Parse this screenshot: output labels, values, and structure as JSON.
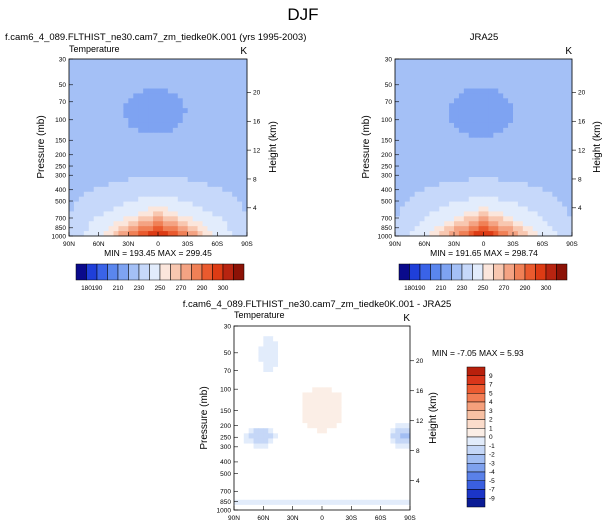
{
  "page_title": "DJF",
  "chart_data": [
    {
      "type": "heatmap",
      "id": "model",
      "title": "f.cam6_4_089.FLTHIST_ne30.cam7_zm_tiedke0K.001 (yrs 1995-2003)",
      "left_string": "Temperature",
      "right_string": "K",
      "ylabel": "Pressure (mb)",
      "right_ylabel": "Height (km)",
      "x_ticks": [
        "90N",
        "60N",
        "30N",
        "0",
        "30S",
        "60S",
        "90S"
      ],
      "y_ticks": [
        "30",
        "50",
        "70",
        "100",
        "150",
        "200",
        "250",
        "300",
        "400",
        "500",
        "700",
        "850",
        "1000"
      ],
      "height_ticks": [
        "20",
        "16",
        "12",
        "8",
        "4"
      ],
      "min_max": "MIN = 193.45   MAX = 299.45",
      "colorbar_labels": [
        "180",
        "190",
        "210",
        "230",
        "250",
        "270",
        "290",
        "300"
      ],
      "colorbar_colors": [
        "#0a0a8c",
        "#1f3fd9",
        "#3a63e8",
        "#5a86ee",
        "#7ea3f2",
        "#a4c0f6",
        "#c6d8fa",
        "#e2ecfc",
        "#fbe6dc",
        "#f8c7b0",
        "#f4a383",
        "#f08056",
        "#ea5a2e",
        "#dd3b14",
        "#b82410",
        "#8c1206"
      ]
    },
    {
      "type": "heatmap",
      "id": "obs",
      "title": "JRA25",
      "right_string": "K",
      "ylabel": "Pressure (mb)",
      "right_ylabel": "Height (km)",
      "x_ticks": [
        "90N",
        "60N",
        "30N",
        "0",
        "30S",
        "60S",
        "90S"
      ],
      "y_ticks": [
        "30",
        "50",
        "70",
        "100",
        "150",
        "200",
        "250",
        "300",
        "400",
        "500",
        "700",
        "850",
        "1000"
      ],
      "height_ticks": [
        "20",
        "16",
        "12",
        "8",
        "4"
      ],
      "min_max": "MIN = 191.65   MAX = 298.74",
      "colorbar_labels": [
        "180",
        "190",
        "210",
        "230",
        "250",
        "270",
        "290",
        "300"
      ]
    },
    {
      "type": "heatmap",
      "id": "diff",
      "title": "f.cam6_4_089.FLTHIST_ne30.cam7_zm_tiedke0K.001 - JRA25",
      "left_string": "Temperature",
      "right_string": "K",
      "ylabel": "Pressure (mb)",
      "right_ylabel": "Height (km)",
      "x_ticks": [
        "90N",
        "60N",
        "30N",
        "0",
        "30S",
        "60S",
        "90S"
      ],
      "y_ticks": [
        "30",
        "50",
        "70",
        "100",
        "150",
        "200",
        "250",
        "300",
        "400",
        "500",
        "700",
        "850",
        "1000"
      ],
      "height_ticks": [
        "20",
        "16",
        "12",
        "8",
        "4"
      ],
      "min_max": "MIN = -7.05   MAX =  5.93",
      "colorbar_labels": [
        "9",
        "7",
        "5",
        "4",
        "3",
        "2",
        "1",
        "0",
        "-1",
        "-2",
        "-3",
        "-4",
        "-5",
        "-7",
        "-9"
      ],
      "colorbar_colors": [
        "#b8200c",
        "#d9361a",
        "#ec5a30",
        "#f27d54",
        "#f5a07c",
        "#f8c1a4",
        "#fbdccb",
        "#fbeee6",
        "#e2ecfb",
        "#c5d7f7",
        "#a2bef3",
        "#7ea1ee",
        "#5a81e9",
        "#3a5fe0",
        "#1b35c7",
        "#0b1c95"
      ]
    }
  ]
}
